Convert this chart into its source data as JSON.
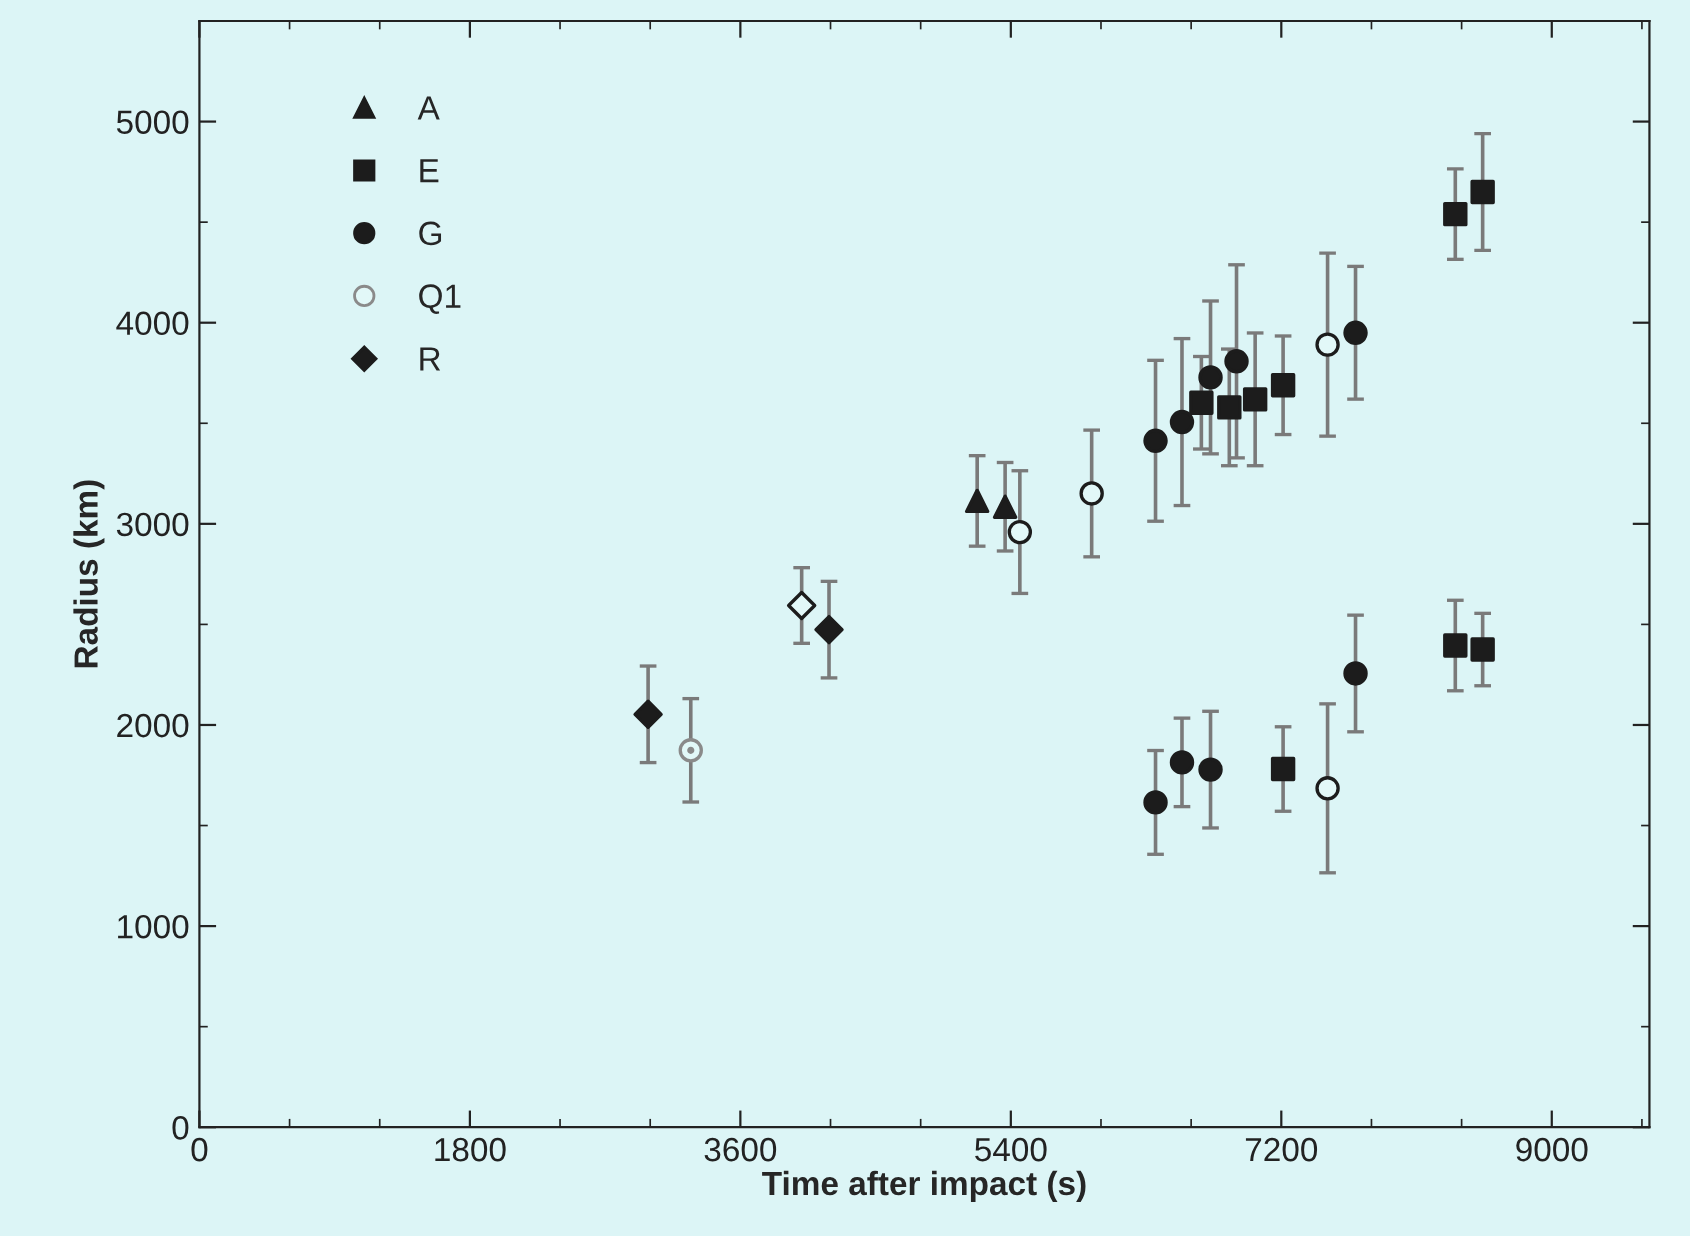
{
  "chart_data": {
    "type": "scatter",
    "xlabel": "Time after impact (s)",
    "ylabel": "Radius (km)",
    "xlim": [
      0,
      9650
    ],
    "ylim": [
      0,
      5500
    ],
    "xticks": [
      0,
      1800,
      3600,
      5400,
      7200,
      9000
    ],
    "yticks": [
      0,
      1000,
      2000,
      3000,
      4000,
      5000
    ],
    "grid": false,
    "legend": "top left",
    "series": [
      {
        "name": "A",
        "marker": "triangle",
        "color": "#1c1c1c",
        "x": [
          5176,
          5362
        ],
        "values": [
          3114,
          3085
        ],
        "errors": [
          225,
          220
        ]
      },
      {
        "name": "E",
        "marker": "square",
        "color": "#1c1c1c",
        "x": [
          6668,
          6854,
          7026,
          7212,
          8358,
          8540,
          8358,
          8540,
          7212
        ],
        "values": [
          3602,
          3579,
          3619,
          3689,
          4540,
          4650,
          2395,
          2375,
          1781
        ],
        "errors": [
          230,
          290,
          330,
          245,
          225,
          290,
          225,
          180,
          210
        ]
      },
      {
        "name": "G",
        "marker": "circle",
        "color": "#1c1c1c",
        "x": [
          6363,
          6539,
          6729,
          6902,
          7694,
          6363,
          6539,
          6729,
          7694,
          5460,
          5938,
          7508,
          7508
        ],
        "values": [
          3413,
          3506,
          3728,
          3808,
          3950,
          1615,
          1814,
          1778,
          2256,
          2959,
          3151,
          3891,
          1685
        ],
        "errors": [
          400,
          415,
          380,
          480,
          330,
          258,
          220,
          290,
          290,
          305,
          315,
          455,
          420
        ],
        "colors": [
          "#1c1c1c",
          "#1c1c1c",
          "#1c1c1c",
          "#1c1c1c",
          "#1c1c1c",
          "#1c1c1c",
          "#1c1c1c",
          "#1c1c1c",
          "#1c1c1c",
          "#e2f8f8",
          "#e2f8f8",
          "#e2f8f8",
          "#e2f8f8"
        ]
      },
      {
        "name": "Q1",
        "marker": "circle",
        "color": "#8a8a8a",
        "x": [
          3270
        ],
        "values": [
          1874
        ],
        "errors": [
          257
        ],
        "colors": [
          "#e2f8f8"
        ]
      },
      {
        "name": "R",
        "marker": "diamond",
        "color": "#1c1c1c",
        "x": [
          2986,
          4190,
          4008
        ],
        "values": [
          2053,
          2474,
          2594
        ],
        "errors": [
          240,
          240,
          188
        ],
        "colors": [
          "#1c1c1c",
          "#1c1c1c",
          "#e2f8f8"
        ]
      }
    ]
  }
}
